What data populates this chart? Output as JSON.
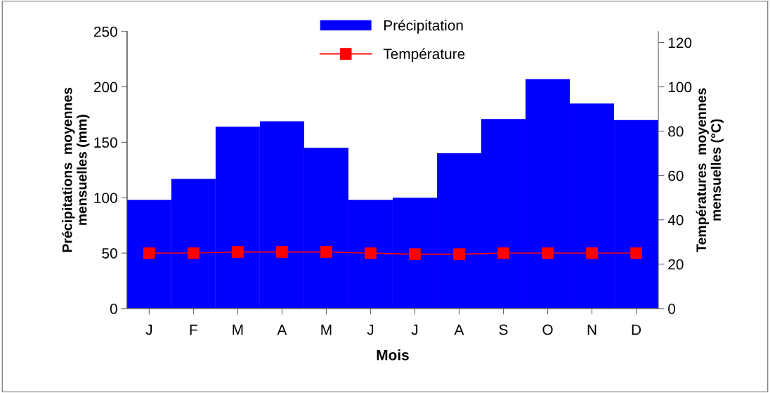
{
  "chart_data": {
    "type": "bar",
    "xlabel": "Mois",
    "ylabel": "Précipitations  moyennes\nmensuelles (mm)",
    "y2label": "Températures  moyennes\nmensuelles (°C)",
    "categories": [
      "J",
      "F",
      "M",
      "A",
      "M",
      "J",
      "J",
      "A",
      "S",
      "O",
      "N",
      "D"
    ],
    "series": [
      {
        "name": "Précipitation",
        "color": "#0000ff",
        "values": [
          98,
          117,
          164,
          169,
          145,
          98,
          100,
          140,
          171,
          207,
          185,
          170
        ]
      },
      {
        "name": "Température",
        "type": "line",
        "axis": "y2",
        "color": "#ff0000",
        "marker": "square",
        "values": [
          25,
          25,
          25.5,
          25.5,
          25.5,
          25,
          24.5,
          24.5,
          25,
          25,
          25,
          25
        ]
      }
    ],
    "ylim": [
      0,
      250
    ],
    "yticks": [
      0,
      50,
      100,
      150,
      200,
      250
    ],
    "y2lim": [
      0,
      125
    ],
    "y2ticks": [
      0,
      20,
      40,
      60,
      80,
      100,
      120
    ],
    "grid": false,
    "legend": "top"
  }
}
